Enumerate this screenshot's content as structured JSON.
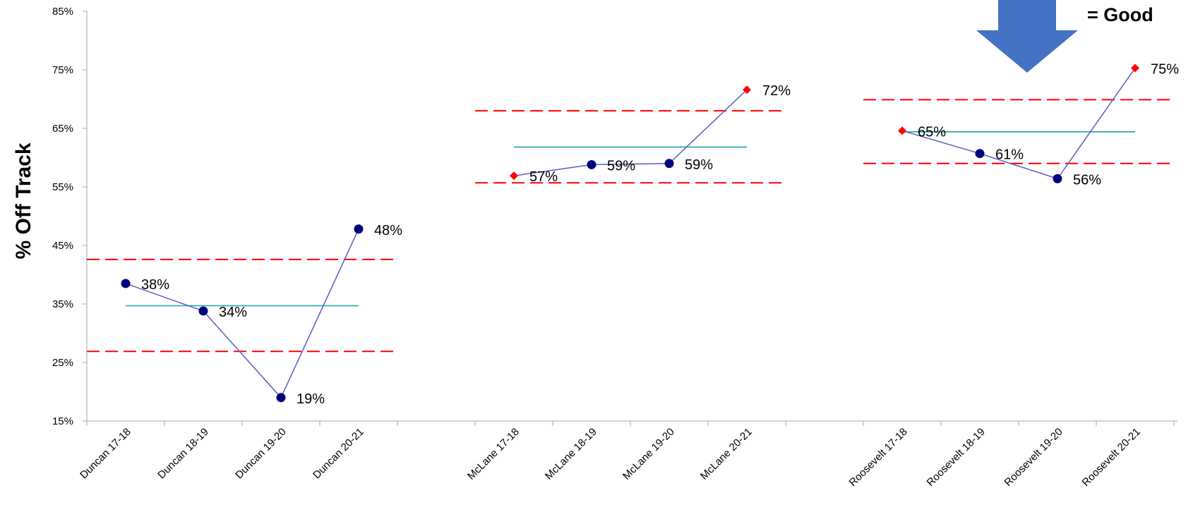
{
  "chart_data": {
    "type": "line",
    "ylabel": "% Off Track",
    "ylim": [
      15,
      85
    ],
    "y_ticks": [
      "15%",
      "25%",
      "35%",
      "45%",
      "55%",
      "65%",
      "75%",
      "85%"
    ],
    "y_tick_values": [
      15,
      25,
      35,
      45,
      55,
      65,
      75,
      85
    ],
    "legend_text": "= Good",
    "groups": [
      {
        "name": "Duncan",
        "categories": [
          "Duncan 17-18",
          "Duncan 18-19",
          "Duncan 19-20",
          "Duncan 20-21"
        ],
        "values": [
          38.5,
          33.8,
          19.0,
          47.8
        ],
        "labels": [
          "38%",
          "34%",
          "19%",
          "48%"
        ],
        "out_of_control": [
          false,
          false,
          false,
          false
        ],
        "center_line": 34.7,
        "ucl": 42.6,
        "lcl": 26.9
      },
      {
        "name": "McLane",
        "categories": [
          "McLane 17-18",
          "McLane 18-19",
          "McLane 19-20",
          "McLane 20-21"
        ],
        "values": [
          56.9,
          58.8,
          59.0,
          71.6
        ],
        "labels": [
          "57%",
          "59%",
          "59%",
          "72%"
        ],
        "out_of_control": [
          true,
          false,
          false,
          true
        ],
        "center_line": 61.8,
        "ucl": 68.0,
        "lcl": 55.7
      },
      {
        "name": "Roosevelt",
        "categories": [
          "Roosevelt 17-18",
          "Roosevelt 18-19",
          "Roosevelt 19-20",
          "Roosevelt 20-21"
        ],
        "values": [
          64.6,
          60.7,
          56.4,
          75.3
        ],
        "labels": [
          "65%",
          "61%",
          "56%",
          "75%"
        ],
        "out_of_control": [
          true,
          false,
          false,
          true
        ],
        "center_line": 64.4,
        "ucl": 69.9,
        "lcl": 59.0
      }
    ],
    "colors": {
      "series_line": "#5b5bc2",
      "in_control_marker": "#00007f",
      "out_of_control_marker": "#ff0000",
      "center_line": "#1aa6a6",
      "control_limits": "#ff0000",
      "axis": "#a6a6a6",
      "arrow": "#4472c4"
    }
  }
}
